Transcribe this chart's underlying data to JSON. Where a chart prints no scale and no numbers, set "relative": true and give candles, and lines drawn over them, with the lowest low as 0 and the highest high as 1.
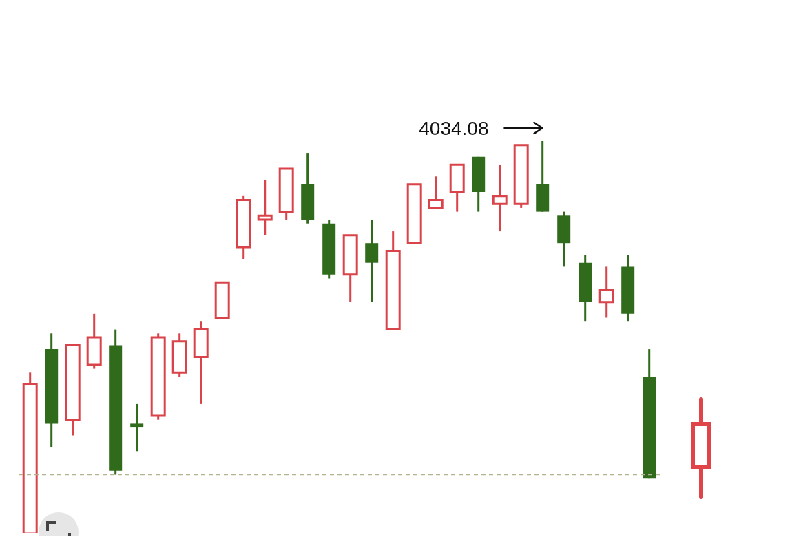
{
  "chart_data": {
    "type": "candlestick",
    "relative": true,
    "categories": [
      null,
      null,
      null,
      null,
      null,
      null,
      null,
      null,
      null,
      null,
      null,
      null,
      null,
      null,
      null,
      null,
      null,
      null,
      null,
      null,
      null,
      null,
      null,
      null,
      null,
      null,
      null,
      null,
      null,
      null
    ],
    "ohlc": [
      [
        0,
        0.41,
        0,
        0.38
      ],
      [
        0.47,
        0.51,
        0.22,
        0.28
      ],
      [
        0.29,
        0.48,
        0.25,
        0.48
      ],
      [
        0.43,
        0.56,
        0.42,
        0.5
      ],
      [
        0.48,
        0.52,
        0.15,
        0.16
      ],
      [
        0.28,
        0.33,
        0.21,
        0.27
      ],
      [
        0.3,
        0.51,
        0.29,
        0.5
      ],
      [
        0.41,
        0.51,
        0.4,
        0.49
      ],
      [
        0.45,
        0.54,
        0.33,
        0.52
      ],
      [
        0.55,
        0.64,
        0.55,
        0.64
      ],
      [
        0.73,
        0.86,
        0.7,
        0.85
      ],
      [
        0.8,
        0.9,
        0.76,
        0.81
      ],
      [
        0.82,
        0.93,
        0.8,
        0.93
      ],
      [
        0.89,
        0.97,
        0.79,
        0.8
      ],
      [
        0.79,
        0.8,
        0.65,
        0.66
      ],
      [
        0.66,
        0.76,
        0.59,
        0.76
      ],
      [
        0.74,
        0.8,
        0.59,
        0.69
      ],
      [
        0.52,
        0.77,
        0.52,
        0.72
      ],
      [
        0.74,
        0.89,
        0.74,
        0.89
      ],
      [
        0.83,
        0.91,
        0.83,
        0.85
      ],
      [
        0.87,
        0.94,
        0.82,
        0.94
      ],
      [
        0.96,
        0.96,
        0.82,
        0.87
      ],
      [
        0.84,
        0.94,
        0.77,
        0.86
      ],
      [
        0.84,
        0.99,
        0.83,
        0.99
      ],
      [
        0.89,
        1,
        0.82,
        0.82
      ],
      [
        0.81,
        0.82,
        0.68,
        0.74
      ],
      [
        0.69,
        0.71,
        0.54,
        0.59
      ],
      [
        0.59,
        0.68,
        0.55,
        0.62
      ],
      [
        0.68,
        0.71,
        0.54,
        0.56
      ],
      [
        0.4,
        0.47,
        0.14,
        0.14
      ]
    ],
    "colors": [
      "#d9434a",
      "#2f6b1a",
      "#d9434a",
      "#d9434a",
      "#2f6b1a",
      "#2f6b1a",
      "#d9434a",
      "#d9434a",
      "#d9434a",
      "#d9434a",
      "#d9434a",
      "#d9434a",
      "#d9434a",
      "#2f6b1a",
      "#2f6b1a",
      "#d9434a",
      "#2f6b1a",
      "#d9434a",
      "#d9434a",
      "#d9434a",
      "#d9434a",
      "#2f6b1a",
      "#d9434a",
      "#d9434a",
      "#2f6b1a",
      "#2f6b1a",
      "#2f6b1a",
      "#d9434a",
      "#2f6b1a",
      "#2f6b1a"
    ],
    "ref_lines": [
      {
        "axis": "y",
        "value": 0.15,
        "color": "#b3b38c",
        "line_style": "dashed"
      }
    ],
    "annotations": [
      "4034.08"
    ]
  }
}
